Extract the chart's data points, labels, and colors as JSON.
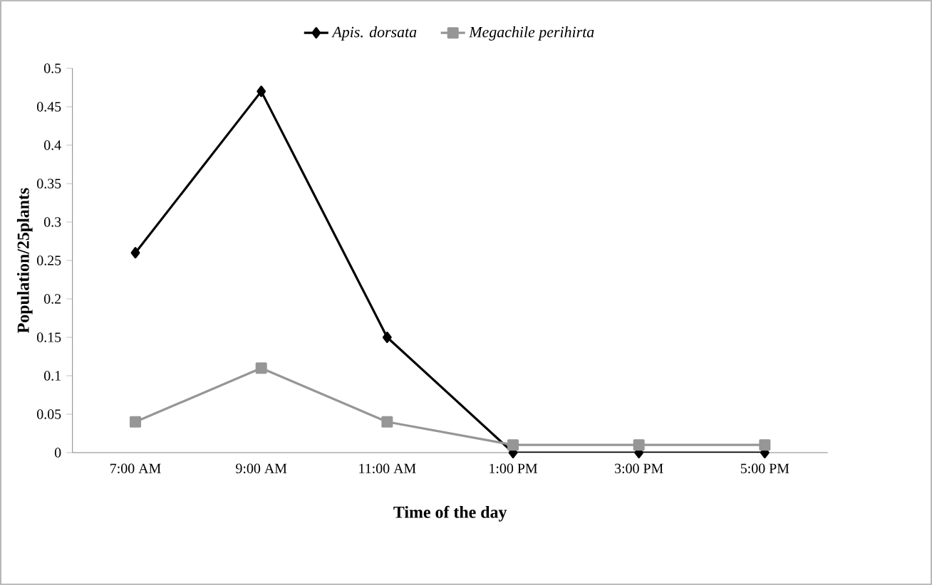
{
  "chart_data": {
    "type": "line",
    "xlabel": "Time of the day",
    "ylabel": "Population/25plants",
    "categories": [
      "7:00 AM",
      "9:00 AM",
      "11:00 AM",
      "1:00 PM",
      "3:00 PM",
      "5:00 PM"
    ],
    "series": [
      {
        "name": "Apis. dorsata",
        "color": "#000000",
        "marker": "diamond",
        "values": [
          0.26,
          0.47,
          0.15,
          0,
          0,
          0
        ]
      },
      {
        "name": "Megachile perihirta",
        "color": "#969696",
        "marker": "square",
        "values": [
          0.04,
          0.11,
          0.04,
          0.01,
          0.01,
          0.01
        ]
      }
    ],
    "ylim": [
      0,
      0.5
    ],
    "yticks": [
      0,
      0.05,
      0.1,
      0.15,
      0.2,
      0.25,
      0.3,
      0.35,
      0.4,
      0.45,
      0.5
    ],
    "grid": false,
    "legend": "top",
    "line_style": "solid"
  }
}
